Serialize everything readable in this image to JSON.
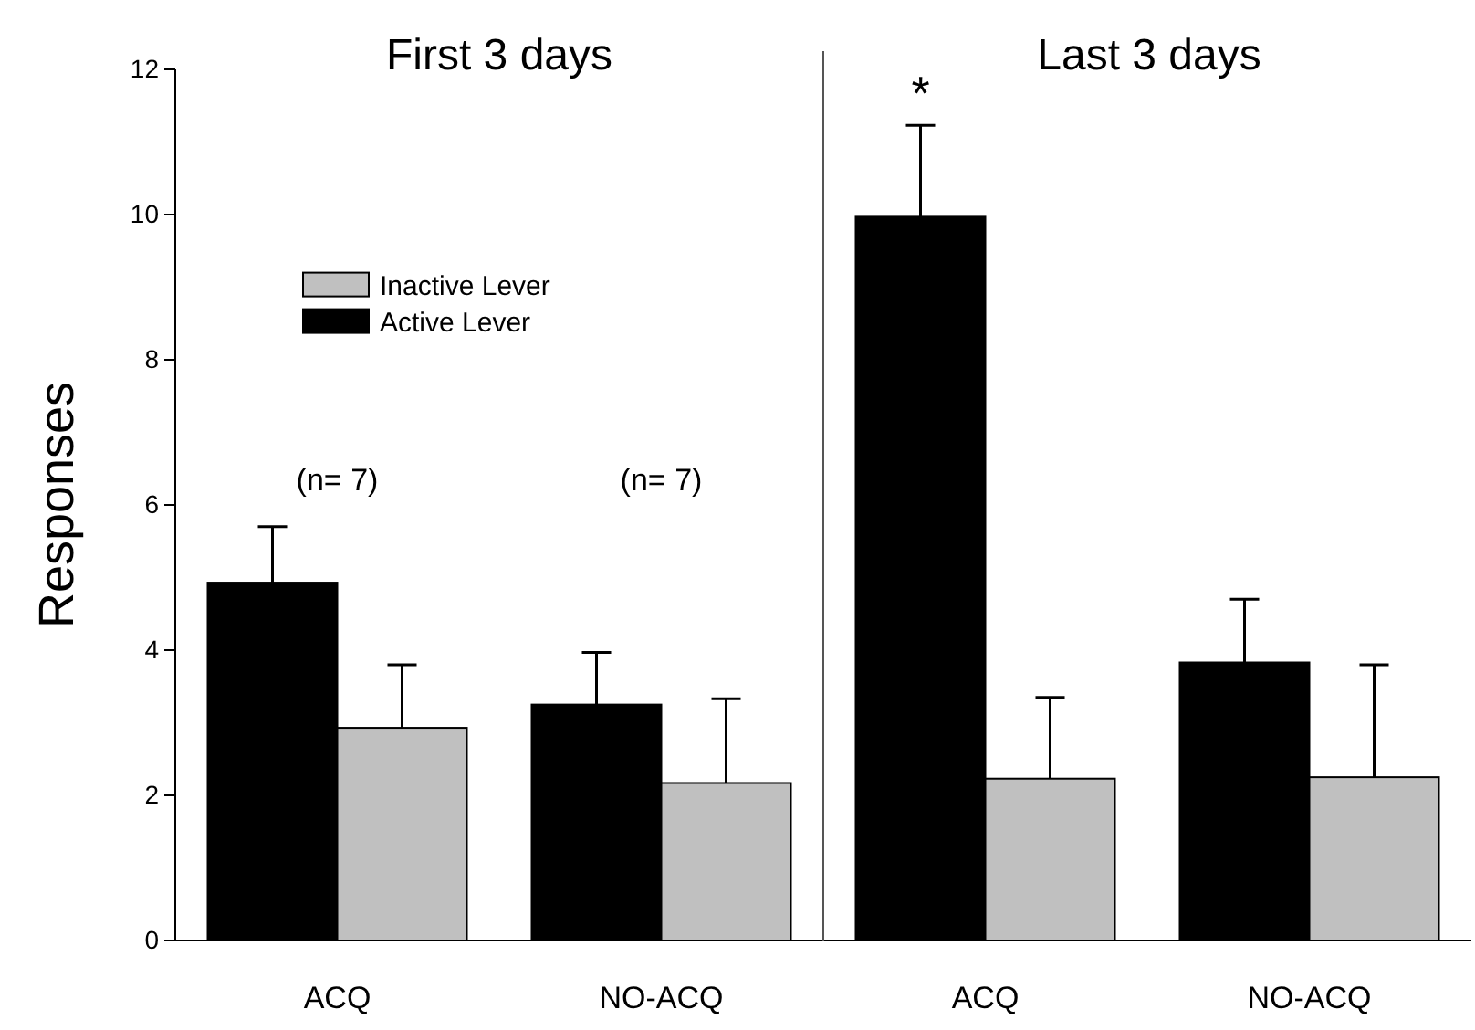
{
  "chart_data": {
    "type": "bar",
    "ylabel": "Responses",
    "categories": [
      "ACQ",
      "NO-ACQ",
      "ACQ",
      "NO-ACQ"
    ],
    "series": [
      {
        "name": "Active Lever",
        "color": "#000000",
        "values": [
          4.93,
          3.25,
          9.97,
          3.83
        ],
        "errors": [
          [
            4.93,
            5.7
          ],
          [
            3.25,
            3.97
          ],
          [
            9.97,
            11.23
          ],
          [
            3.83,
            4.7
          ]
        ]
      },
      {
        "name": "Inactive Lever",
        "color": "#c0c0c0",
        "values": [
          2.93,
          2.17,
          2.23,
          2.25
        ],
        "errors": [
          [
            2.93,
            3.8
          ],
          [
            2.17,
            3.33
          ],
          [
            2.23,
            3.35
          ],
          [
            2.25,
            3.8
          ]
        ]
      }
    ],
    "ylim": [
      0,
      12
    ],
    "yticks": [
      0,
      2,
      4,
      6,
      8,
      10,
      12
    ],
    "legend": "top left",
    "annotations": [
      "First 3 days",
      "Last 3 days",
      "(n= 7)",
      "(n= 7)",
      "*"
    ]
  }
}
